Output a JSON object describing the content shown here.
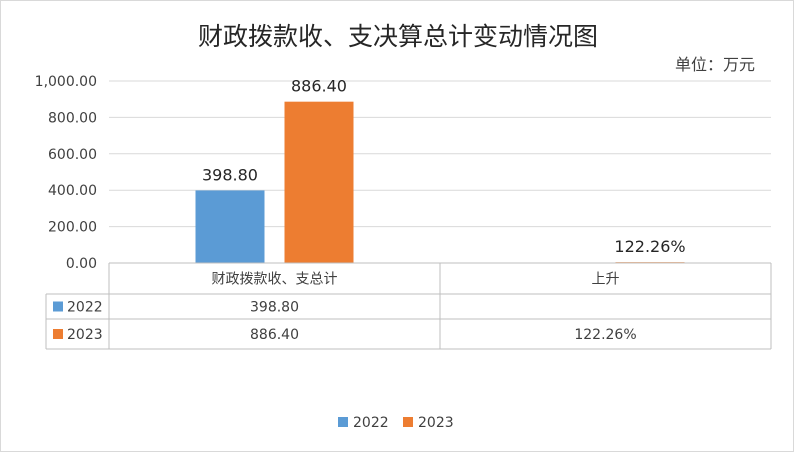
{
  "chart_data": {
    "type": "bar",
    "title": "财政拨款收、支决算总计变动情况图",
    "unit_label": "单位：万元",
    "categories": [
      "财政拨款收、支总计",
      "上升"
    ],
    "series": [
      {
        "name": "2022",
        "values": [
          398.8,
          null
        ],
        "labels": [
          "398.80",
          ""
        ],
        "color": "#5b9bd5"
      },
      {
        "name": "2023",
        "values": [
          886.4,
          1.2226
        ],
        "labels": [
          "886.40",
          "122.26%"
        ],
        "color": "#ed7d31"
      }
    ],
    "ylim": [
      0,
      1000
    ],
    "yticks": [
      0,
      200,
      400,
      600,
      800,
      1000
    ],
    "ytick_labels": [
      "0.00",
      "200.00",
      "400.00",
      "600.00",
      "800.00",
      "1,000.00"
    ],
    "grid": true,
    "legend": "bottom",
    "data_table": true
  }
}
